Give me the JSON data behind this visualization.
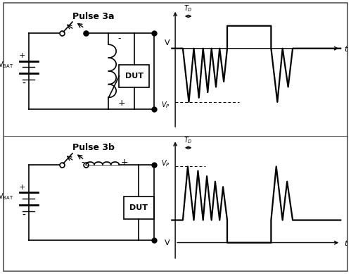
{
  "bg_color": "#ffffff",
  "border_color": "#555555",
  "title_3a": "Pulse 3a",
  "title_3b": "Pulse 3b",
  "dut_label": "DUT",
  "line_color": "#000000",
  "lw": 1.4,
  "spike_lw": 1.6
}
